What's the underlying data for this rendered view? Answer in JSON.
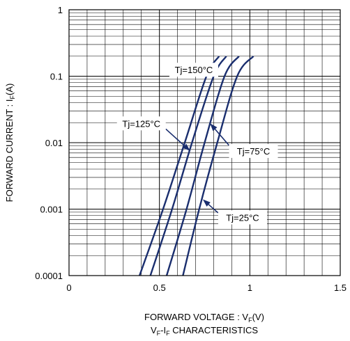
{
  "chart_data": {
    "type": "line",
    "ylog": true,
    "xlim": [
      0,
      1.5
    ],
    "ylim": [
      0.0001,
      1
    ],
    "x_ticks": [
      {
        "value": 0,
        "label": "0"
      },
      {
        "value": 0.5,
        "label": "0.5"
      },
      {
        "value": 1,
        "label": "1"
      },
      {
        "value": 1.5,
        "label": "1.5"
      }
    ],
    "y_ticks": [
      {
        "value": 1,
        "label": "1"
      },
      {
        "value": 0.1,
        "label": "0.1"
      },
      {
        "value": 0.01,
        "label": "0.01"
      },
      {
        "value": 0.001,
        "label": "0.001"
      },
      {
        "value": 0.0001,
        "label": "0.0001"
      }
    ],
    "xlabel": {
      "main": "FORWARD VOLTAGE : V",
      "sub": "F",
      "unit": "(V)"
    },
    "ylabel": {
      "main": "FORWARD CURRENT : I",
      "sub": "F",
      "unit": "(A)"
    },
    "caption": {
      "pre": "V",
      "sub1": "F",
      "mid": "-I",
      "sub2": "F",
      "post": " CHARACTERISTICS"
    },
    "grid": true,
    "line_color": "#1a2e6e",
    "series": [
      {
        "name": "Tj=150°C",
        "points": [
          [
            0.39,
            0.0001
          ],
          [
            0.52,
            0.001
          ],
          [
            0.64,
            0.01
          ],
          [
            0.76,
            0.1
          ],
          [
            0.83,
            0.2
          ]
        ]
      },
      {
        "name": "Tj=125°C",
        "points": [
          [
            0.45,
            0.0001
          ],
          [
            0.57,
            0.001
          ],
          [
            0.68,
            0.01
          ],
          [
            0.8,
            0.1
          ],
          [
            0.87,
            0.2
          ]
        ]
      },
      {
        "name": "Tj=75°C",
        "points": [
          [
            0.54,
            0.0001
          ],
          [
            0.65,
            0.001
          ],
          [
            0.75,
            0.01
          ],
          [
            0.86,
            0.1
          ],
          [
            0.94,
            0.2
          ]
        ]
      },
      {
        "name": "Tj=25°C",
        "points": [
          [
            0.63,
            0.0001
          ],
          [
            0.72,
            0.001
          ],
          [
            0.82,
            0.01
          ],
          [
            0.93,
            0.1
          ],
          [
            1.02,
            0.2
          ]
        ]
      }
    ],
    "annotations": [
      {
        "text": "Tj=150°C",
        "series": "Tj=150°C",
        "label_at": [
          0.69,
          0.125
        ],
        "arrow_to": [
          0.78,
          0.125
        ]
      },
      {
        "text": "Tj=125°C",
        "series": "Tj=125°C",
        "label_at": [
          0.4,
          0.0195
        ],
        "arrow_to": [
          0.67,
          0.0075
        ]
      },
      {
        "text": "Tj=75°C",
        "series": "Tj=75°C",
        "label_at": [
          1.02,
          0.0075
        ],
        "arrow_to": [
          0.78,
          0.0195
        ]
      },
      {
        "text": "Tj=25°C",
        "series": "Tj=25°C",
        "label_at": [
          0.96,
          0.00075
        ],
        "arrow_to": [
          0.74,
          0.0014
        ]
      }
    ]
  }
}
